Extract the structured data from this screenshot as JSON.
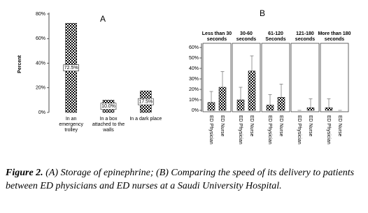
{
  "chart_data": [
    {
      "type": "bar",
      "title": "A",
      "ylabel": "Percent",
      "categories": [
        "In an emergency trolley",
        "In a box attached to the walls",
        "In a dark place"
      ],
      "values": [
        72.5,
        10.0,
        17.5
      ],
      "value_labels": [
        "72.5%",
        "10.0%",
        "17.5%"
      ],
      "ylim": [
        0,
        80
      ],
      "yticks": [
        {
          "value": 0,
          "label": "0%"
        },
        {
          "value": 20,
          "label": "20%"
        },
        {
          "value": 40,
          "label": "40%"
        },
        {
          "value": 60,
          "label": "60%"
        },
        {
          "value": 80,
          "label": "80%"
        }
      ]
    },
    {
      "type": "grouped-bar",
      "title": "B",
      "categories": [
        "Less than 30 seconds",
        "30-60 seconds",
        "61-120 Seconds",
        "121-180 seconds",
        "More than 180 seconds"
      ],
      "series": [
        {
          "name": "ED Physician",
          "values": [
            7.5,
            10,
            5,
            0,
            2.5
          ],
          "errors": [
            10.5,
            12,
            10,
            0,
            8.5
          ]
        },
        {
          "name": "ED Nurse",
          "values": [
            22,
            37.5,
            12.5,
            2.5,
            0
          ],
          "errors": [
            15,
            14.5,
            12.5,
            8.5,
            0
          ]
        }
      ],
      "ylim": [
        0,
        60
      ],
      "yticks": [
        {
          "value": 0,
          "label": "0%"
        },
        {
          "value": 10,
          "label": "10%"
        },
        {
          "value": 20,
          "label": "20%"
        },
        {
          "value": 30,
          "label": "30%"
        },
        {
          "value": 40,
          "label": "40%"
        },
        {
          "value": 50,
          "label": "50%"
        },
        {
          "value": 60,
          "label": "60%"
        }
      ]
    }
  ],
  "caption": {
    "label": "Figure 2.",
    "text": "(A) Storage of epinephrine; (B) Comparing the speed of its delivery to patients between ED physicians and ED nurses at a Saudi University Hospital."
  }
}
